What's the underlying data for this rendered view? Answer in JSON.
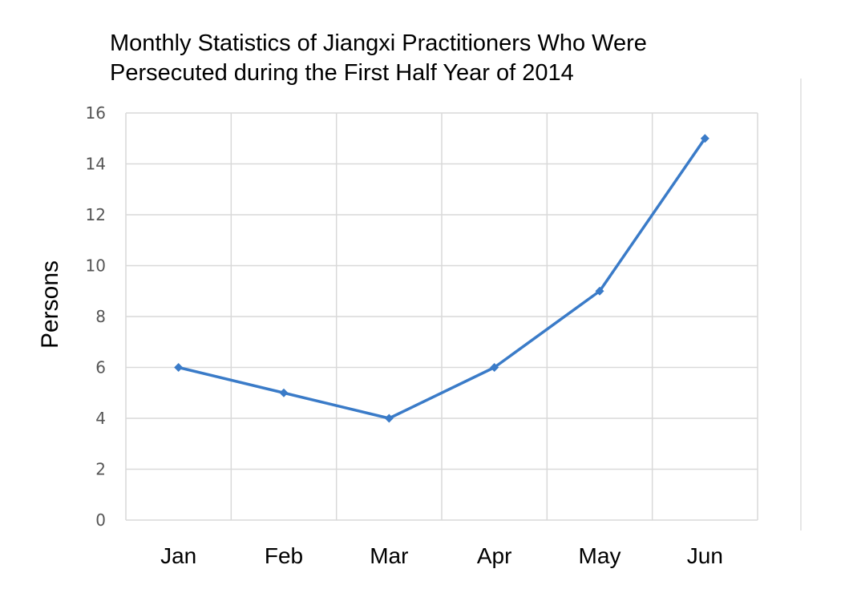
{
  "chart_data": {
    "type": "line",
    "title": "Monthly Statistics of Jiangxi Practitioners Who Were Persecuted during the First Half Year of 2014",
    "title_lines": [
      "Monthly Statistics of Jiangxi Practitioners Who Were",
      "Persecuted during the First Half Year of 2014"
    ],
    "xlabel": "",
    "ylabel": "Persons",
    "categories": [
      "Jan",
      "Feb",
      "Mar",
      "Apr",
      "May",
      "Jun"
    ],
    "series": [
      {
        "values": [
          6,
          5,
          4,
          6,
          9,
          15
        ]
      }
    ],
    "ylim": [
      0,
      16
    ],
    "y_ticks": [
      0,
      2,
      4,
      6,
      8,
      10,
      12,
      14,
      16
    ],
    "grid": true,
    "legend": "none",
    "colors": {
      "line": "#3a7bc8",
      "grid": "#d9d9d9",
      "tick_text": "#555555"
    }
  }
}
